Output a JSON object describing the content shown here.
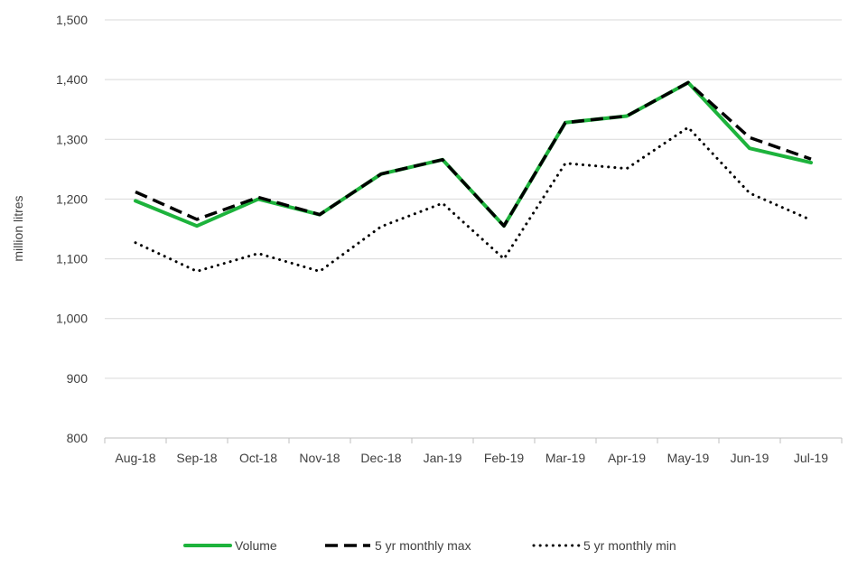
{
  "chart_data": {
    "type": "line",
    "title": "",
    "xlabel": "",
    "ylabel": "million litres",
    "ylim": [
      800,
      1500
    ],
    "yticks": [
      800,
      900,
      1000,
      1100,
      1200,
      1300,
      1400,
      1500
    ],
    "ytick_labels": [
      "800",
      "900",
      "1,000",
      "1,100",
      "1,200",
      "1,300",
      "1,400",
      "1,500"
    ],
    "grid": true,
    "legend_position": "bottom",
    "categories": [
      "Aug-18",
      "Sep-18",
      "Oct-18",
      "Nov-18",
      "Dec-18",
      "Jan-19",
      "Feb-19",
      "Mar-19",
      "Apr-19",
      "May-19",
      "Jun-19",
      "Jul-19"
    ],
    "series": [
      {
        "name": "Volume",
        "style": "solid",
        "color": "#1db33c",
        "values": [
          1197,
          1155,
          1200,
          1174,
          1242,
          1266,
          1155,
          1328,
          1339,
          1395,
          1285,
          1261
        ]
      },
      {
        "name": "5 yr monthly max",
        "style": "dashed",
        "color": "#000000",
        "values": [
          1212,
          1166,
          1203,
          1174,
          1242,
          1266,
          1155,
          1328,
          1339,
          1395,
          1303,
          1267
        ]
      },
      {
        "name": "5 yr monthly min",
        "style": "dotted",
        "color": "#000000",
        "values": [
          1127,
          1079,
          1109,
          1079,
          1154,
          1193,
          1100,
          1260,
          1251,
          1320,
          1210,
          1165
        ]
      }
    ]
  }
}
